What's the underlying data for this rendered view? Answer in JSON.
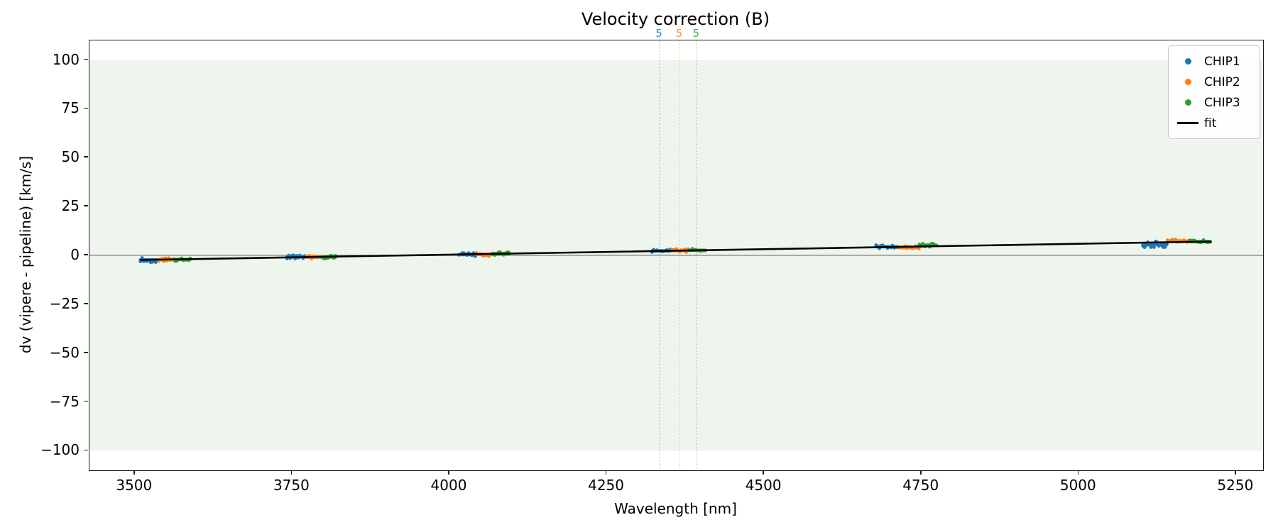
{
  "chart_data": {
    "type": "scatter",
    "title": "Velocity correction (B)",
    "xlabel": "Wavelength [nm]",
    "ylabel": "dv (vipere - pipeline) [km/s]",
    "xlim": [
      3428,
      5293
    ],
    "ylim": [
      -110,
      110
    ],
    "grid": false,
    "legend_position": "upper right",
    "x_ticks": [
      3500,
      3750,
      4000,
      4250,
      4500,
      4750,
      5000,
      5250
    ],
    "x_tick_labels": [
      "3500",
      "3750",
      "4000",
      "4250",
      "4500",
      "4750",
      "5000",
      "5250"
    ],
    "y_ticks": [
      100,
      75,
      50,
      25,
      0,
      -25,
      -50,
      -75,
      -100
    ],
    "y_tick_labels": [
      "100",
      "75",
      "50",
      "25",
      "0",
      "−25",
      "−50",
      "−75",
      "−100"
    ],
    "shaded_band": {
      "y_min": -100,
      "y_max": 100,
      "color": "#eef5ed"
    },
    "zero_line": {
      "y": 0,
      "color": "#808080"
    },
    "series": [
      {
        "name": "CHIP1",
        "color": "#1f77b4",
        "segments": [
          {
            "x_min": 3509,
            "x_max": 3536,
            "dv": -2.3,
            "spread": 1.3
          },
          {
            "x_min": 3742,
            "x_max": 3770,
            "dv": -0.8,
            "spread": 1.0
          },
          {
            "x_min": 4015,
            "x_max": 4041,
            "dv": 0.4,
            "spread": 0.9
          },
          {
            "x_min": 4322,
            "x_max": 4351,
            "dv": 2.3,
            "spread": 0.9
          },
          {
            "x_min": 4678,
            "x_max": 4712,
            "dv": 4.4,
            "spread": 0.9
          },
          {
            "x_min": 5102,
            "x_max": 5140,
            "dv": 5.5,
            "spread": 1.7
          }
        ]
      },
      {
        "name": "CHIP2",
        "color": "#ff7f0e",
        "segments": [
          {
            "x_min": 3538,
            "x_max": 3562,
            "dv": -2.2,
            "spread": 1.0
          },
          {
            "x_min": 3773,
            "x_max": 3797,
            "dv": -1.0,
            "spread": 0.9
          },
          {
            "x_min": 4043,
            "x_max": 4068,
            "dv": 0.5,
            "spread": 0.9
          },
          {
            "x_min": 4353,
            "x_max": 4379,
            "dv": 2.4,
            "spread": 0.9
          },
          {
            "x_min": 4714,
            "x_max": 4746,
            "dv": 3.9,
            "spread": 0.9
          },
          {
            "x_min": 5141,
            "x_max": 5175,
            "dv": 7.3,
            "spread": 1.0
          }
        ]
      },
      {
        "name": "CHIP3",
        "color": "#2ca02c",
        "segments": [
          {
            "x_min": 3564,
            "x_max": 3588,
            "dv": -2.1,
            "spread": 1.0
          },
          {
            "x_min": 3799,
            "x_max": 3819,
            "dv": -0.9,
            "spread": 0.9
          },
          {
            "x_min": 4070,
            "x_max": 4094,
            "dv": 0.9,
            "spread": 0.9
          },
          {
            "x_min": 4381,
            "x_max": 4407,
            "dv": 2.6,
            "spread": 0.9
          },
          {
            "x_min": 4747,
            "x_max": 4774,
            "dv": 5.2,
            "spread": 0.9
          },
          {
            "x_min": 5177,
            "x_max": 5209,
            "dv": 7.0,
            "spread": 1.0
          }
        ]
      }
    ],
    "fit": {
      "name": "fit",
      "color": "#000000",
      "x_start": 3510,
      "y_start": -2.35,
      "x_end": 5210,
      "y_end": 7.1
    },
    "vlines": [
      {
        "x": 4334,
        "color": "#1f77b4",
        "label": "5"
      },
      {
        "x": 4366,
        "color": "#ff7f0e",
        "label": "5"
      },
      {
        "x": 4393,
        "color": "#2ca02c",
        "label": "5"
      }
    ],
    "legend": [
      {
        "label": "CHIP1",
        "color": "#1f77b4",
        "marker": "dot"
      },
      {
        "label": "CHIP2",
        "color": "#ff7f0e",
        "marker": "dot"
      },
      {
        "label": "CHIP3",
        "color": "#2ca02c",
        "marker": "dot"
      },
      {
        "label": "fit",
        "color": "#000000",
        "marker": "line"
      }
    ]
  }
}
